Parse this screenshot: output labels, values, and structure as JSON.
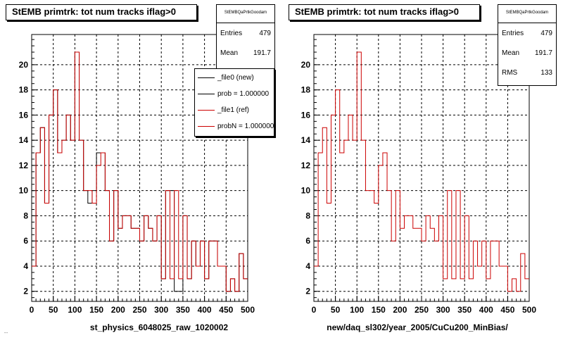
{
  "colors": {
    "new": "#000000",
    "ref": "#cc0000",
    "background": "#ffffff",
    "frame": "#000000"
  },
  "status_text": "...",
  "chart_data": [
    {
      "type": "histogram",
      "title": "StEMB primtrk: tot num tracks iflag>0",
      "xlabel": "st_physics_6048025_raw_1020002",
      "ylabel": "",
      "xlim": [
        0,
        500
      ],
      "ylim": [
        1.2,
        22.4
      ],
      "x_ticks": [
        0,
        50,
        100,
        150,
        200,
        250,
        300,
        350,
        400,
        450,
        500
      ],
      "y_ticks": [
        2,
        4,
        6,
        8,
        10,
        12,
        14,
        16,
        18,
        20
      ],
      "grid": true,
      "bin_width": 10,
      "bin_edges_start": 0,
      "stats": {
        "title": "StEMBQaPrtkGoodam",
        "rows": [
          {
            "label": "Entries",
            "value": "479"
          },
          {
            "label": "Mean",
            "value": "191.7"
          }
        ]
      },
      "legend": {
        "placement": "top-right",
        "entries": [
          {
            "label": "_file0 (new)",
            "color_key": "new"
          },
          {
            "label": "prob = 1.000000",
            "color_key": "new"
          },
          {
            "label": "_file1 (ref)",
            "color_key": "ref"
          },
          {
            "label": "probN = 1.000000",
            "color_key": "ref"
          }
        ]
      },
      "series": [
        {
          "name": "_file0 (new)",
          "color_key": "new",
          "values": [
            4,
            13,
            15,
            9,
            16,
            18,
            13,
            14,
            16,
            14,
            21,
            14,
            10,
            9,
            10,
            13,
            13,
            10,
            6,
            10,
            7,
            8,
            8,
            7,
            7,
            6,
            8,
            7,
            6,
            8,
            3,
            10,
            10,
            2,
            2,
            8,
            3,
            6,
            4,
            6,
            3,
            6,
            6,
            4,
            4,
            2,
            3,
            2,
            5,
            3
          ]
        },
        {
          "name": "_file1 (ref)",
          "color_key": "ref",
          "values": [
            4,
            13,
            15,
            9,
            16,
            18,
            13,
            14,
            16,
            14,
            21,
            14,
            10,
            10,
            9,
            12,
            13,
            10,
            6,
            10,
            7,
            8,
            8,
            7,
            7,
            6,
            8,
            7,
            6,
            8,
            3,
            10,
            3,
            10,
            3,
            8,
            3,
            6,
            4,
            6,
            3,
            6,
            6,
            4,
            4,
            2,
            3,
            2,
            5,
            3
          ]
        }
      ]
    },
    {
      "type": "histogram",
      "title": "StEMB primtrk: tot num tracks iflag>0",
      "xlabel": "new/daq_sl302/year_2005/CuCu200_MinBias/",
      "ylabel": "",
      "xlim": [
        0,
        500
      ],
      "ylim": [
        1.2,
        22.4
      ],
      "x_ticks": [
        0,
        50,
        100,
        150,
        200,
        250,
        300,
        350,
        400,
        450,
        500
      ],
      "y_ticks": [
        2,
        4,
        6,
        8,
        10,
        12,
        14,
        16,
        18,
        20
      ],
      "grid": true,
      "bin_width": 10,
      "bin_edges_start": 0,
      "stats": {
        "title": "StEMBQaPrtkGoodam",
        "rows": [
          {
            "label": "Entries",
            "value": "479"
          },
          {
            "label": "Mean",
            "value": "191.7"
          },
          {
            "label": "RMS",
            "value": "133"
          }
        ]
      },
      "series": [
        {
          "name": "",
          "color_key": "ref",
          "values": [
            4,
            13,
            15,
            9,
            16,
            18,
            13,
            14,
            16,
            14,
            21,
            14,
            10,
            10,
            9,
            12,
            13,
            10,
            6,
            10,
            7,
            8,
            8,
            7,
            7,
            6,
            8,
            7,
            6,
            8,
            3,
            10,
            3,
            10,
            3,
            8,
            3,
            6,
            4,
            6,
            3,
            6,
            6,
            4,
            4,
            2,
            3,
            2,
            5,
            3
          ]
        }
      ]
    }
  ]
}
